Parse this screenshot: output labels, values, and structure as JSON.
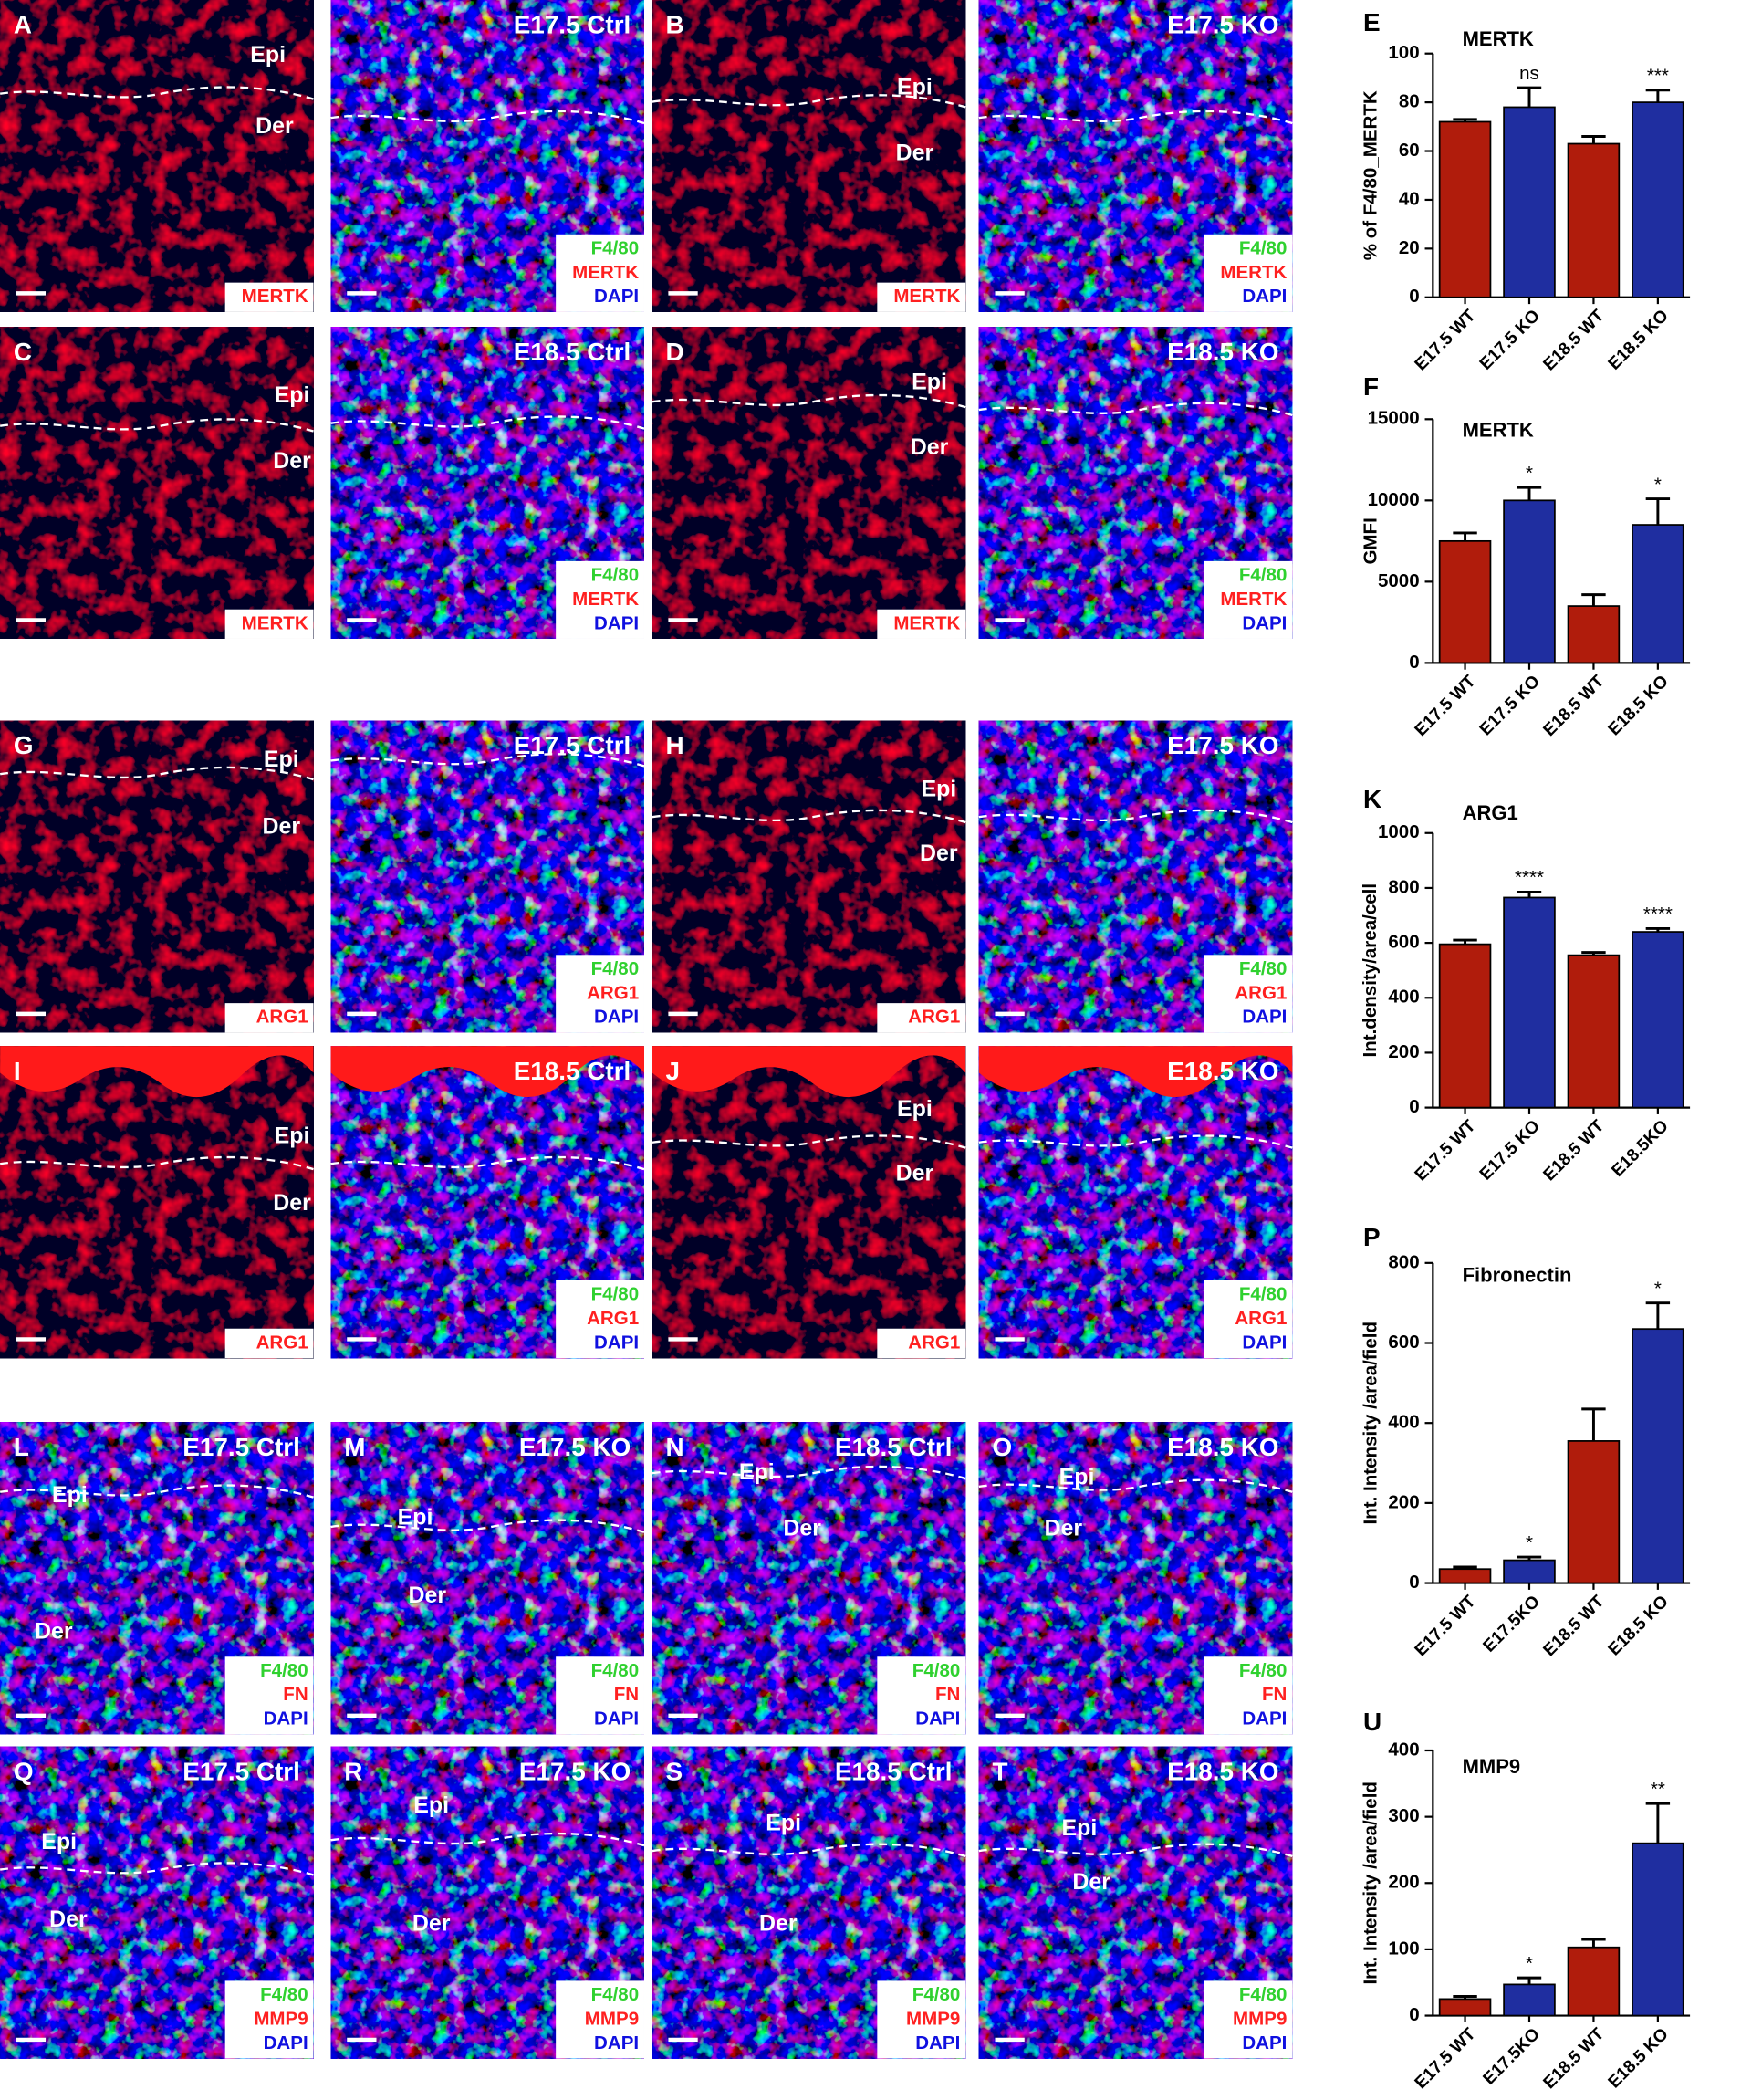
{
  "panels": [
    {
      "letter": "A",
      "labels": [
        "Epi",
        "Der"
      ],
      "stains": [
        "MERTK"
      ]
    },
    {
      "title": "E17.5 Ctrl",
      "stains": [
        "F4/80",
        "MERTK",
        "DAPI"
      ]
    },
    {
      "letter": "B",
      "labels": [
        "Epi",
        "Der"
      ],
      "stains": [
        "MERTK"
      ]
    },
    {
      "title": "E17.5 KO",
      "stains": [
        "F4/80",
        "MERTK",
        "DAPI"
      ]
    },
    {
      "letter": "C",
      "labels": [
        "Epi",
        "Der"
      ],
      "stains": [
        "MERTK"
      ]
    },
    {
      "title": "E18.5 Ctrl",
      "stains": [
        "F4/80",
        "MERTK",
        "DAPI"
      ]
    },
    {
      "letter": "D",
      "labels": [
        "Epi",
        "Der"
      ],
      "stains": [
        "MERTK"
      ]
    },
    {
      "title": "E18.5 KO",
      "stains": [
        "F4/80",
        "MERTK",
        "DAPI"
      ]
    },
    {
      "letter": "G",
      "labels": [
        "Epi",
        "Der"
      ],
      "stains": [
        "ARG1"
      ]
    },
    {
      "title": "E17.5 Ctrl",
      "stains": [
        "F4/80",
        "ARG1",
        "DAPI"
      ]
    },
    {
      "letter": "H",
      "labels": [
        "Epi",
        "Der"
      ],
      "stains": [
        "ARG1"
      ]
    },
    {
      "title": "E17.5 KO",
      "stains": [
        "F4/80",
        "ARG1",
        "DAPI"
      ]
    },
    {
      "letter": "I",
      "labels": [
        "Epi",
        "Der"
      ],
      "stains": [
        "ARG1"
      ]
    },
    {
      "title": "E18.5 Ctrl",
      "stains": [
        "F4/80",
        "ARG1",
        "DAPI"
      ]
    },
    {
      "letter": "J",
      "labels": [
        "Epi",
        "Der"
      ],
      "stains": [
        "ARG1"
      ]
    },
    {
      "title": "E18.5 KO",
      "stains": [
        "F4/80",
        "ARG1",
        "DAPI"
      ]
    },
    {
      "letter": "L",
      "title": "E17.5 Ctrl",
      "labels": [
        "Epi",
        "Der"
      ],
      "stains": [
        "F4/80",
        "FN",
        "DAPI"
      ]
    },
    {
      "letter": "M",
      "title": "E17.5 KO",
      "labels": [
        "Epi",
        "Der"
      ],
      "stains": [
        "F4/80",
        "FN",
        "DAPI"
      ]
    },
    {
      "letter": "N",
      "title": "E18.5 Ctrl",
      "labels": [
        "Epi",
        "Der"
      ],
      "stains": [
        "F4/80",
        "FN",
        "DAPI"
      ]
    },
    {
      "letter": "O",
      "title": "E18.5 KO",
      "labels": [
        "Epi",
        "Der"
      ],
      "stains": [
        "F4/80",
        "FN",
        "DAPI"
      ]
    },
    {
      "letter": "Q",
      "title": "E17.5 Ctrl",
      "labels": [
        "Epi",
        "Der"
      ],
      "stains": [
        "F4/80",
        "MMP9",
        "DAPI"
      ]
    },
    {
      "letter": "R",
      "title": "E17.5 KO",
      "labels": [
        "Epi",
        "Der"
      ],
      "stains": [
        "F4/80",
        "MMP9",
        "DAPI"
      ]
    },
    {
      "letter": "S",
      "title": "E18.5 Ctrl",
      "labels": [
        "Epi",
        "Der"
      ],
      "stains": [
        "F4/80",
        "MMP9",
        "DAPI"
      ]
    },
    {
      "letter": "T",
      "title": "E18.5 KO",
      "labels": [
        "Epi",
        "Der"
      ],
      "stains": [
        "F4/80",
        "MMP9",
        "DAPI"
      ]
    }
  ],
  "chart_data": [
    {
      "type": "bar",
      "letter": "E",
      "title": "MERTK",
      "y_label": "% of F4/80_MERTK",
      "categories": [
        "E17.5 WT",
        "E17.5 KO",
        "E18.5 WT",
        "E18.5 KO"
      ],
      "values": [
        72,
        78,
        63,
        80
      ],
      "errors": [
        1,
        8,
        3,
        5
      ],
      "annotations": [
        null,
        "ns",
        null,
        "***"
      ],
      "colors": [
        "#b01c0c",
        "#1f2ea0",
        "#b01c0c",
        "#1f2ea0"
      ],
      "ylim": [
        0,
        100
      ],
      "yticks": [
        0,
        20,
        40,
        60,
        80,
        100
      ]
    },
    {
      "type": "bar",
      "letter": "F",
      "title": "MERTK",
      "y_label": "GMFI",
      "categories": [
        "E17.5 WT",
        "E17.5 KO",
        "E18.5 WT",
        "E18.5 KO"
      ],
      "values": [
        7500,
        10000,
        3500,
        8500
      ],
      "errors": [
        500,
        800,
        700,
        1600
      ],
      "annotations": [
        null,
        "*",
        null,
        "*"
      ],
      "colors": [
        "#b01c0c",
        "#1f2ea0",
        "#b01c0c",
        "#1f2ea0"
      ],
      "ylim": [
        0,
        15000
      ],
      "yticks": [
        0,
        5000,
        10000,
        15000
      ]
    },
    {
      "type": "bar",
      "letter": "K",
      "title": "ARG1",
      "y_label": "Int.density/area/cell",
      "categories": [
        "E17.5 WT",
        "E17.5 KO",
        "E18.5 WT",
        "E18.5KO"
      ],
      "values": [
        595,
        765,
        555,
        640
      ],
      "errors": [
        15,
        20,
        10,
        12
      ],
      "annotations": [
        null,
        "****",
        null,
        "****"
      ],
      "colors": [
        "#b01c0c",
        "#1f2ea0",
        "#b01c0c",
        "#1f2ea0"
      ],
      "ylim": [
        0,
        1000
      ],
      "yticks": [
        0,
        200,
        400,
        600,
        800,
        1000
      ]
    },
    {
      "type": "bar",
      "letter": "P",
      "title": "Fibronectin",
      "y_label": "Int. Intensity /area/field",
      "categories": [
        "E17.5 WT",
        "E17.5KO",
        "E18.5 WT",
        "E18.5 KO"
      ],
      "values": [
        35,
        57,
        355,
        635
      ],
      "errors": [
        5,
        8,
        80,
        65
      ],
      "annotations": [
        null,
        "*",
        null,
        "*"
      ],
      "colors": [
        "#b01c0c",
        "#1f2ea0",
        "#b01c0c",
        "#1f2ea0"
      ],
      "ylim": [
        0,
        800
      ],
      "yticks": [
        0,
        200,
        400,
        600,
        800
      ]
    },
    {
      "type": "bar",
      "letter": "U",
      "title": "MMP9",
      "y_label": "Int. Intensity /area/field",
      "categories": [
        "E17.5 WT",
        "E17.5KO",
        "E18.5 WT",
        "E18.5 KO"
      ],
      "values": [
        25,
        47,
        103,
        260
      ],
      "errors": [
        4,
        10,
        12,
        60
      ],
      "annotations": [
        null,
        "*",
        null,
        "**"
      ],
      "colors": [
        "#b01c0c",
        "#1f2ea0",
        "#b01c0c",
        "#1f2ea0"
      ],
      "ylim": [
        0,
        400
      ],
      "yticks": [
        0,
        100,
        200,
        300,
        400
      ]
    }
  ]
}
